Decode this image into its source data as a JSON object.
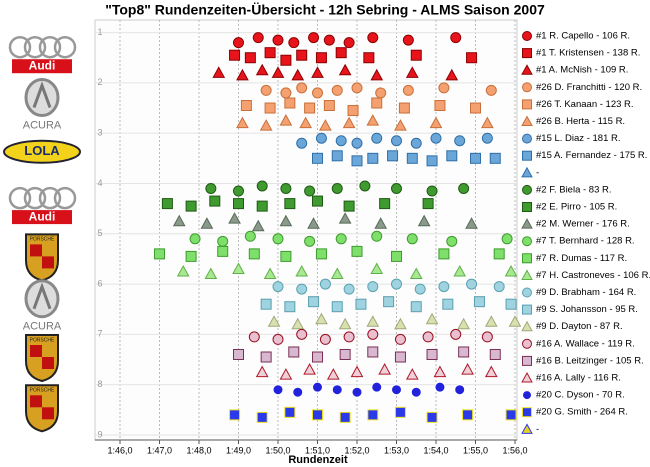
{
  "logos": [
    "Audi",
    "ACURA",
    "LOLA",
    "Audi",
    "PORSCHE",
    "ACURA",
    "PORSCHE",
    "PORSCHE"
  ],
  "chart_data": {
    "type": "scatter",
    "title": "\"Top8\" Rundenzeiten-Übersicht - 12h Sebring - ALMS Saison 2007",
    "x_label": "Rundenzeit",
    "xlim": [
      106,
      116
    ],
    "ylim": [
      0.75,
      9.1
    ],
    "y_inverted": true,
    "grid": true,
    "legend": "right",
    "xticks": [
      {
        "value": 106,
        "label": "1:46,0"
      },
      {
        "value": 107,
        "label": "1:47,0"
      },
      {
        "value": 108,
        "label": "1:48,0"
      },
      {
        "value": 109,
        "label": "1:49,0"
      },
      {
        "value": 110,
        "label": "1:50,0"
      },
      {
        "value": 111,
        "label": "1:51,0"
      },
      {
        "value": 112,
        "label": "1:52,0"
      },
      {
        "value": 113,
        "label": "1:53,0"
      },
      {
        "value": 114,
        "label": "1:54,0"
      },
      {
        "value": 115,
        "label": "1:55,0"
      },
      {
        "value": 116,
        "label": "1:56,0"
      }
    ],
    "yticks": [
      1,
      2,
      3,
      4,
      5,
      6,
      7,
      8,
      9
    ],
    "series": [
      {
        "name": "#1 R. Capello - 106 R.",
        "color": "#e8141c",
        "stroke": "#8a0000",
        "marker": "circle",
        "x": [
          109.0,
          109.5,
          110.0,
          110.4,
          110.9,
          111.3,
          111.8,
          112.4,
          113.3,
          114.5
        ],
        "y": [
          1.2,
          1.1,
          1.15,
          1.2,
          1.1,
          1.15,
          1.2,
          1.1,
          1.15,
          1.1
        ]
      },
      {
        "name": "#1 T. Kristensen - 138 R.",
        "color": "#e8141c",
        "stroke": "#8a0000",
        "marker": "square",
        "x": [
          108.9,
          109.3,
          109.8,
          110.2,
          110.6,
          111.1,
          111.6,
          112.3,
          113.5,
          114.9
        ],
        "y": [
          1.45,
          1.5,
          1.4,
          1.55,
          1.45,
          1.5,
          1.4,
          1.5,
          1.45,
          1.5
        ]
      },
      {
        "name": "#1 A. McNish - 109 R.",
        "color": "#e8141c",
        "stroke": "#8a0000",
        "marker": "triangle",
        "x": [
          108.5,
          109.1,
          109.6,
          110.0,
          110.5,
          111.0,
          111.7,
          112.5,
          113.4,
          114.4
        ],
        "y": [
          1.8,
          1.85,
          1.75,
          1.8,
          1.85,
          1.8,
          1.75,
          1.85,
          1.8,
          1.85
        ]
      },
      {
        "name": "#26 D. Franchitti - 120 R.",
        "color": "#f5a070",
        "stroke": "#c8703a",
        "marker": "circle",
        "x": [
          109.7,
          110.2,
          110.6,
          111.0,
          111.5,
          112.0,
          112.6,
          113.3,
          114.2,
          115.4
        ],
        "y": [
          2.15,
          2.2,
          2.1,
          2.2,
          2.15,
          2.1,
          2.2,
          2.15,
          2.1,
          2.15
        ]
      },
      {
        "name": "#26 T. Kanaan - 123 R.",
        "color": "#f5a070",
        "stroke": "#c8703a",
        "marker": "square",
        "x": [
          109.2,
          109.8,
          110.3,
          110.8,
          111.3,
          111.9,
          112.5,
          113.2,
          114.1,
          115.0
        ],
        "y": [
          2.45,
          2.5,
          2.4,
          2.5,
          2.45,
          2.55,
          2.4,
          2.5,
          2.45,
          2.5
        ]
      },
      {
        "name": "#26 B. Herta - 115 R.",
        "color": "#f5a070",
        "stroke": "#c8703a",
        "marker": "triangle",
        "x": [
          109.1,
          109.7,
          110.2,
          110.7,
          111.2,
          111.8,
          112.4,
          113.1,
          114.0,
          115.3
        ],
        "y": [
          2.8,
          2.85,
          2.75,
          2.8,
          2.85,
          2.8,
          2.75,
          2.85,
          2.8,
          2.8
        ]
      },
      {
        "name": "#15 L. Diaz - 181 R.",
        "color": "#6aa6d8",
        "stroke": "#2f6fa8",
        "marker": "circle",
        "x": [
          110.6,
          111.1,
          111.6,
          112.0,
          112.5,
          113.0,
          113.5,
          114.0,
          114.6,
          115.3
        ],
        "y": [
          3.2,
          3.1,
          3.15,
          3.2,
          3.1,
          3.15,
          3.2,
          3.1,
          3.15,
          3.1
        ]
      },
      {
        "name": "#15 A. Fernandez - 175 R.",
        "color": "#6aa6d8",
        "stroke": "#2f6fa8",
        "marker": "square",
        "x": [
          111.0,
          111.5,
          112.0,
          112.4,
          112.9,
          113.4,
          113.9,
          114.4,
          115.0,
          115.5
        ],
        "y": [
          3.5,
          3.45,
          3.55,
          3.5,
          3.45,
          3.5,
          3.55,
          3.45,
          3.5,
          3.5
        ]
      },
      {
        "name": "-",
        "color": "#6aa6d8",
        "stroke": "#2f6fa8",
        "marker": "triangle",
        "x": [],
        "y": []
      },
      {
        "name": "#2 F. Biela - 83 R.",
        "color": "#3f9a2f",
        "stroke": "#1f5a15",
        "marker": "circle",
        "x": [
          108.3,
          109.0,
          109.6,
          110.2,
          110.8,
          111.5,
          112.2,
          113.0,
          113.9,
          114.7
        ],
        "y": [
          4.1,
          4.15,
          4.05,
          4.1,
          4.15,
          4.1,
          4.05,
          4.1,
          4.15,
          4.1
        ]
      },
      {
        "name": "#2 E. Pirro - 105 R.",
        "color": "#3f9a2f",
        "stroke": "#1f5a15",
        "marker": "square",
        "x": [
          107.2,
          107.8,
          108.4,
          109.0,
          109.6,
          110.3,
          111.0,
          111.8,
          112.7,
          113.8
        ],
        "y": [
          4.4,
          4.45,
          4.35,
          4.4,
          4.45,
          4.4,
          4.35,
          4.45,
          4.4,
          4.4
        ]
      },
      {
        "name": "#2 M. Werner - 176 R.",
        "color": "#8a9a8a",
        "stroke": "#5a6a5a",
        "marker": "triangle",
        "x": [
          107.5,
          108.2,
          108.9,
          109.5,
          110.2,
          110.9,
          111.7,
          112.6,
          113.7,
          114.9
        ],
        "y": [
          4.75,
          4.8,
          4.7,
          4.85,
          4.75,
          4.8,
          4.7,
          4.8,
          4.75,
          4.8
        ]
      },
      {
        "name": "#7 T. Bernhard - 128 R.",
        "color": "#7ee06a",
        "stroke": "#3f9a2f",
        "marker": "circle",
        "x": [
          107.9,
          108.6,
          109.3,
          110.0,
          110.8,
          111.6,
          112.5,
          113.4,
          114.4,
          115.8
        ],
        "y": [
          5.1,
          5.15,
          5.05,
          5.1,
          5.15,
          5.1,
          5.05,
          5.1,
          5.15,
          5.1
        ]
      },
      {
        "name": "#7 R. Dumas - 117 R.",
        "color": "#7ee06a",
        "stroke": "#3f9a2f",
        "marker": "square",
        "x": [
          107.0,
          107.8,
          108.6,
          109.4,
          110.2,
          111.1,
          112.0,
          113.0,
          114.2,
          115.6
        ],
        "y": [
          5.4,
          5.45,
          5.35,
          5.4,
          5.45,
          5.4,
          5.35,
          5.45,
          5.4,
          5.4
        ]
      },
      {
        "name": "#7 H. Castroneves - 106 R.",
        "color": "#a8e890",
        "stroke": "#5fb04a",
        "marker": "triangle",
        "x": [
          107.6,
          108.3,
          109.0,
          109.8,
          110.6,
          111.5,
          112.5,
          113.5,
          114.6,
          115.9
        ],
        "y": [
          5.75,
          5.8,
          5.7,
          5.8,
          5.75,
          5.8,
          5.7,
          5.8,
          5.75,
          5.75
        ]
      },
      {
        "name": "#9 D. Brabham - 164 R.",
        "color": "#9fd3e0",
        "stroke": "#5aa0b0",
        "marker": "circle",
        "x": [
          110.0,
          110.6,
          111.2,
          111.8,
          112.4,
          113.0,
          113.6,
          114.2,
          114.9,
          115.6
        ],
        "y": [
          6.05,
          6.1,
          6.0,
          6.1,
          6.05,
          6.0,
          6.1,
          6.05,
          6.0,
          6.05
        ]
      },
      {
        "name": "#9 S. Johansson - 95 R.",
        "color": "#9fd3e0",
        "stroke": "#5aa0b0",
        "marker": "square",
        "x": [
          109.7,
          110.3,
          110.9,
          111.5,
          112.1,
          112.8,
          113.5,
          114.3,
          115.1,
          115.9
        ],
        "y": [
          6.4,
          6.45,
          6.35,
          6.45,
          6.4,
          6.35,
          6.45,
          6.4,
          6.35,
          6.4
        ]
      },
      {
        "name": "#9 D. Dayton - 87 R.",
        "color": "#d8e0b0",
        "stroke": "#a0a878",
        "marker": "triangle",
        "x": [
          109.9,
          110.5,
          111.1,
          111.7,
          112.4,
          113.1,
          113.9,
          114.7,
          115.4,
          116.0
        ],
        "y": [
          6.75,
          6.8,
          6.7,
          6.8,
          6.75,
          6.8,
          6.7,
          6.8,
          6.75,
          6.75
        ]
      },
      {
        "name": "#16 A. Wallace - 119 R.",
        "color": "#e8c0d0",
        "stroke": "#9a1020",
        "marker": "circle",
        "x": [
          109.4,
          110.0,
          110.6,
          111.2,
          111.8,
          112.4,
          113.1,
          113.8,
          114.5,
          115.3
        ],
        "y": [
          7.05,
          7.1,
          7.0,
          7.1,
          7.05,
          7.0,
          7.1,
          7.05,
          7.0,
          7.05
        ]
      },
      {
        "name": "#16 B. Leitzinger - 105 R.",
        "color": "#d8b8d0",
        "stroke": "#7a3050",
        "marker": "square",
        "x": [
          109.0,
          109.7,
          110.4,
          111.0,
          111.7,
          112.4,
          113.1,
          113.9,
          114.7,
          115.5
        ],
        "y": [
          7.4,
          7.45,
          7.35,
          7.45,
          7.4,
          7.35,
          7.45,
          7.4,
          7.35,
          7.4
        ]
      },
      {
        "name": "#16 A. Lally - 116 R.",
        "color": "#f0d0d8",
        "stroke": "#b01828",
        "marker": "triangle",
        "x": [
          109.6,
          110.2,
          110.8,
          111.4,
          112.0,
          112.7,
          113.4,
          114.1,
          114.8,
          115.4
        ],
        "y": [
          7.75,
          7.8,
          7.7,
          7.8,
          7.75,
          7.7,
          7.8,
          7.75,
          7.7,
          7.75
        ]
      },
      {
        "name": "#20 C. Dyson - 70 R.",
        "color": "#2222dd",
        "stroke": "#ffffff",
        "marker": "circle",
        "x": [
          110.0,
          110.5,
          111.0,
          111.5,
          112.0,
          112.5,
          113.0,
          113.5,
          114.1,
          114.6
        ],
        "y": [
          8.1,
          8.15,
          8.05,
          8.1,
          8.15,
          8.05,
          8.1,
          8.15,
          8.05,
          8.1
        ]
      },
      {
        "name": "#20 G. Smith - 264 R.",
        "color": "#2a3ae8",
        "stroke": "#f0e020",
        "marker": "square",
        "x": [
          108.9,
          109.6,
          110.3,
          111.0,
          111.7,
          112.4,
          113.1,
          113.9,
          114.8,
          115.9
        ],
        "y": [
          8.6,
          8.65,
          8.55,
          8.6,
          8.65,
          8.6,
          8.55,
          8.65,
          8.6,
          8.6
        ]
      },
      {
        "name": "-",
        "color": "#e8d020",
        "stroke": "#2a3ae8",
        "marker": "triangle",
        "x": [],
        "y": []
      }
    ]
  }
}
